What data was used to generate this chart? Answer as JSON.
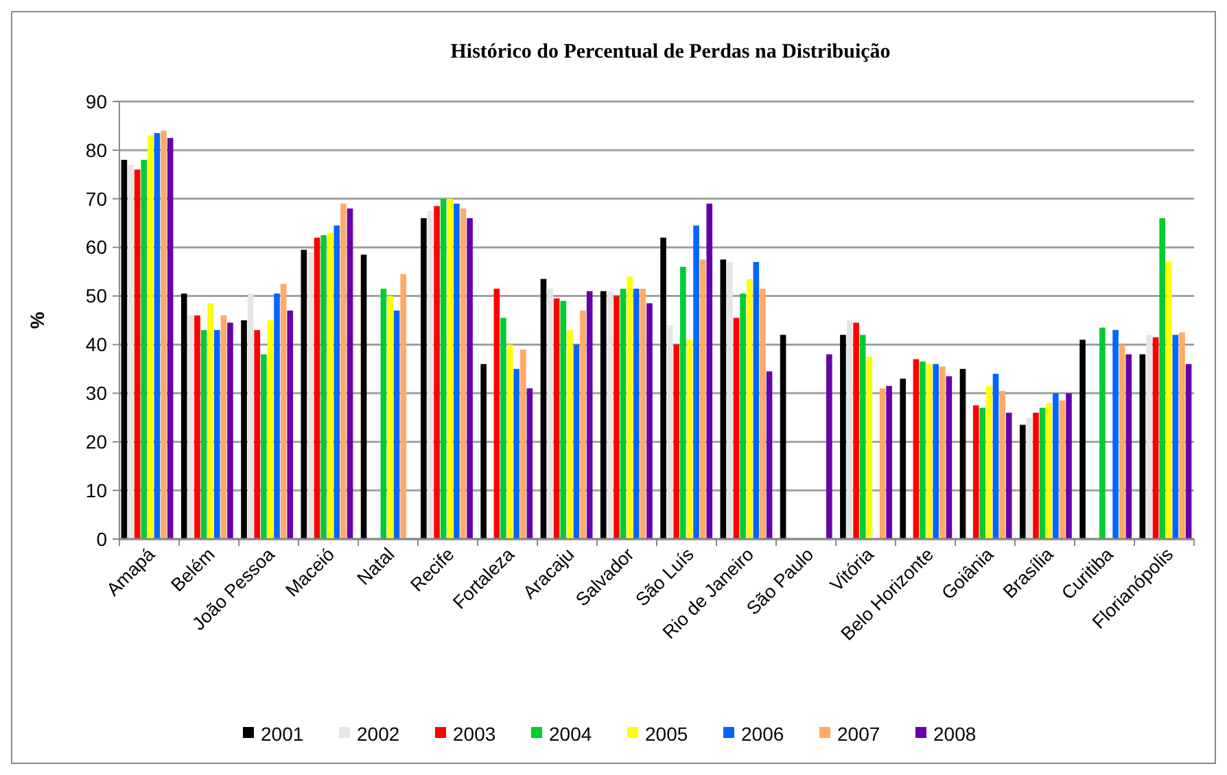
{
  "chart_data": {
    "type": "bar",
    "title": "Histórico do Percentual de Perdas na Distribuição",
    "ylabel": "%",
    "categories": [
      "Amapá",
      "Belém",
      "João Pessoa",
      "Maceió",
      "Natal",
      "Recife",
      "Fortaleza",
      "Aracaju",
      "Salvador",
      "São Luís",
      "Rio de Janeiro",
      "São Paulo",
      "Vitória",
      "Belo Horizonte",
      "Goiânia",
      "Brasília",
      "Curitiba",
      "Florianópolis"
    ],
    "series": [
      {
        "name": "2001",
        "color": "#000000",
        "values": [
          78,
          50.5,
          45,
          59.5,
          58.5,
          66,
          36,
          53.5,
          51,
          62,
          57.5,
          42,
          42,
          33,
          35,
          23.5,
          41,
          38
        ]
      },
      {
        "name": "2002",
        "color": "#e6e6e6",
        "values": [
          77,
          46,
          50.5,
          59,
          null,
          67.5,
          null,
          51.5,
          51,
          44,
          57,
          null,
          45,
          null,
          null,
          25,
          null,
          42
        ]
      },
      {
        "name": "2003",
        "color": "#ff0000",
        "values": [
          76,
          46,
          43,
          62,
          null,
          68.5,
          51.5,
          49.5,
          50,
          40,
          45.5,
          null,
          44.5,
          37,
          27.5,
          26,
          null,
          41.5
        ]
      },
      {
        "name": "2004",
        "color": "#00cc33",
        "values": [
          78,
          43,
          38,
          62.5,
          51.5,
          70,
          45.5,
          49,
          51.5,
          56,
          50.5,
          null,
          42,
          36.5,
          27,
          27,
          43.5,
          66
        ]
      },
      {
        "name": "2005",
        "color": "#ffff00",
        "values": [
          83,
          48.5,
          45,
          63,
          50,
          70,
          40,
          43,
          54,
          41,
          53.5,
          null,
          37.5,
          36,
          31.5,
          28,
          null,
          57
        ]
      },
      {
        "name": "2006",
        "color": "#0066ff",
        "values": [
          83.5,
          43,
          50.5,
          64.5,
          47,
          69,
          35,
          40,
          51.5,
          64.5,
          57,
          null,
          null,
          36,
          34,
          30,
          43,
          42
        ]
      },
      {
        "name": "2007",
        "color": "#ffaa66",
        "values": [
          84,
          46,
          52.5,
          69,
          54.5,
          68,
          39,
          47,
          51.5,
          57.5,
          51.5,
          null,
          31,
          35.5,
          30.5,
          28.5,
          40,
          42.5
        ]
      },
      {
        "name": "2008",
        "color": "#6600aa",
        "values": [
          82.5,
          44.5,
          47,
          68,
          null,
          66,
          31,
          51,
          48.5,
          69,
          34.5,
          38,
          31.5,
          33.5,
          26,
          30,
          38,
          36
        ]
      }
    ],
    "ylim": [
      0,
      90
    ],
    "yticks": [
      0,
      10,
      20,
      30,
      40,
      50,
      60,
      70,
      80,
      90
    ],
    "grid": "y",
    "legend": "bottom"
  }
}
